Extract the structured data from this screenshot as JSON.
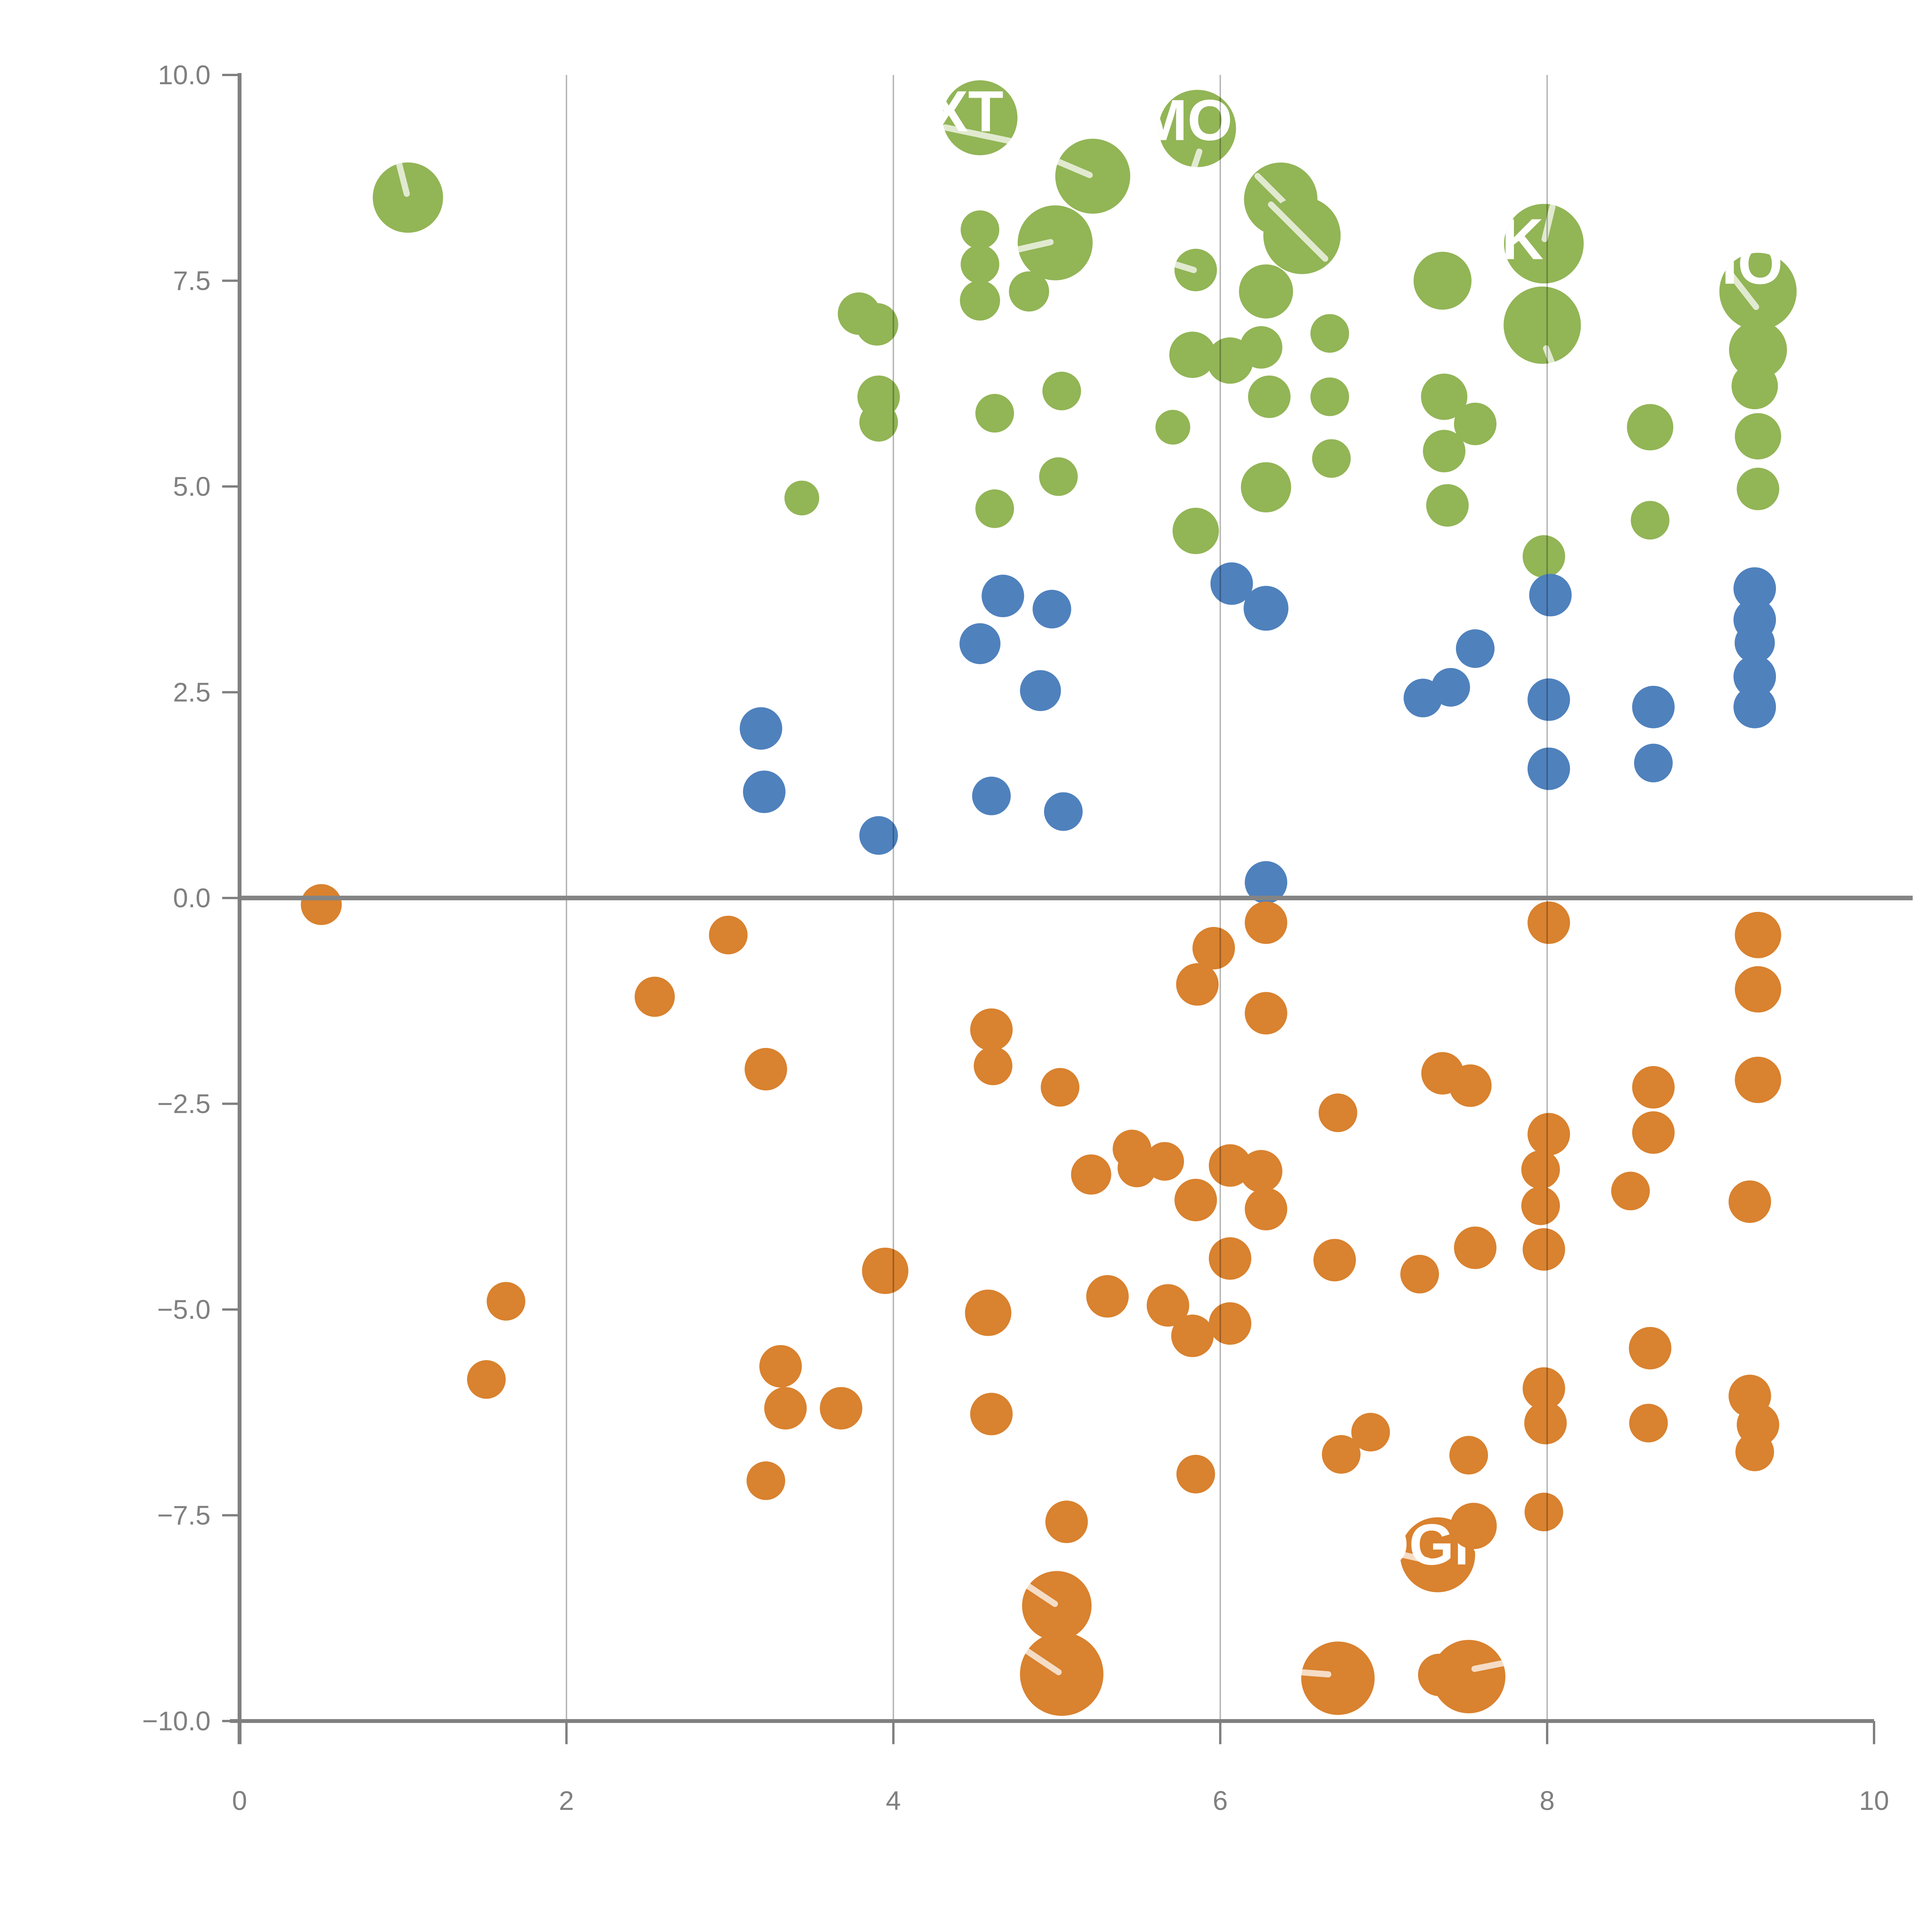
{
  "chart_data": {
    "type": "scatter",
    "title": "",
    "xlabel": "",
    "ylabel": "",
    "xlim": [
      0,
      10
    ],
    "ylim": [
      -10,
      10
    ],
    "x_ticks": [
      "0",
      "2",
      "4",
      "6",
      "8",
      "10"
    ],
    "x_tick_values": [
      0,
      2,
      4,
      6,
      8,
      10
    ],
    "y_ticks": [
      "10.0",
      "7.5",
      "5.0",
      "2.5",
      "0.0",
      "−2.5",
      "−5.0",
      "−7.5",
      "−10.0"
    ],
    "y_tick_values": [
      10,
      7.5,
      5,
      2.5,
      0,
      -2.5,
      -5,
      -7.5,
      -10
    ],
    "grid_x": [
      2,
      4,
      6,
      8
    ],
    "zero_line_y": 0,
    "legend_position": "none",
    "colors": {
      "green": "#92B556",
      "blue": "#4F81BD",
      "orange": "#D9822F",
      "axis": "#808080",
      "zero_line": "#848484",
      "bubble_label": "#ffffff"
    },
    "series": [
      {
        "name": "green",
        "color": "#92B556",
        "points": [
          [
            1.03,
            8.51,
            91,
            {
              "line": [
                -24,
                -92,
                -3,
                -10
              ]
            }
          ],
          [
            4.53,
            9.48,
            97,
            {
              "label": "XT",
              "dx": -35,
              "dy": 35,
              "line": [
                -90,
                25,
                77,
                60
              ]
            }
          ],
          [
            5.86,
            9.35,
            100,
            {
              "label": "MO",
              "dx": -30,
              "dy": 30,
              "line": [
                5,
                60,
                -25,
                150
              ]
            }
          ],
          [
            5.22,
            8.77,
            97,
            {
              "line": [
                -95,
                -40,
                -8,
                -3
              ]
            }
          ],
          [
            4.99,
            7.96,
            97,
            {
              "line": [
                -100,
                18,
                -12,
                -2
              ]
            }
          ],
          [
            4.53,
            8.12,
            50
          ],
          [
            4.53,
            7.7,
            50
          ],
          [
            4.53,
            7.26,
            52
          ],
          [
            4.83,
            7.37,
            52
          ],
          [
            6.37,
            8.49,
            95,
            {
              "line": [
                -60,
                -60,
                25,
                25
              ]
            }
          ],
          [
            6.5,
            8.05,
            100,
            {
              "line": [
                -80,
                -80,
                60,
                60
              ]
            }
          ],
          [
            3.79,
            7.1,
            55
          ],
          [
            3.9,
            6.97,
            55
          ],
          [
            3.91,
            6.09,
            55
          ],
          [
            3.91,
            5.78,
            50
          ],
          [
            4.62,
            5.89,
            50
          ],
          [
            5.03,
            6.16,
            50
          ],
          [
            5.01,
            5.12,
            50
          ],
          [
            3.44,
            4.86,
            45
          ],
          [
            4.62,
            4.73,
            50
          ],
          [
            5.85,
            7.63,
            55,
            {
              "line": [
                -70,
                -20,
                -5,
                0
              ]
            }
          ],
          [
            6.28,
            7.37,
            70
          ],
          [
            7.36,
            7.5,
            75
          ],
          [
            7.98,
            7.95,
            103,
            {
              "label": "K",
              "dx": -55,
              "dy": 40,
              "line": [
                22,
                -95,
                2,
                -12
              ]
            }
          ],
          [
            7.97,
            6.96,
            100,
            {
              "line": [
                10,
                60,
                50,
                160
              ]
            }
          ],
          [
            9.29,
            7.37,
            100,
            {
              "label": "IO",
              "dx": -15,
              "dy": -20,
              "line": [
                -75,
                -50,
                -5,
                40
              ]
            }
          ],
          [
            9.29,
            6.66,
            75
          ],
          [
            9.27,
            6.22,
            60
          ],
          [
            5.83,
            6.6,
            60
          ],
          [
            6.06,
            6.53,
            60
          ],
          [
            6.25,
            6.69,
            55
          ],
          [
            6.3,
            6.09,
            55
          ],
          [
            6.67,
            6.86,
            50
          ],
          [
            6.67,
            6.09,
            50
          ],
          [
            7.37,
            6.09,
            60
          ],
          [
            7.56,
            5.76,
            55
          ],
          [
            7.37,
            5.43,
            55
          ],
          [
            7.39,
            4.77,
            55
          ],
          [
            5.71,
            5.72,
            45
          ],
          [
            6.28,
            4.99,
            65
          ],
          [
            6.68,
            5.34,
            50
          ],
          [
            8.63,
            5.72,
            60
          ],
          [
            9.29,
            5.61,
            60
          ],
          [
            9.29,
            4.97,
            55
          ],
          [
            8.63,
            4.59,
            50
          ],
          [
            5.85,
            4.46,
            60
          ],
          [
            7.98,
            4.15,
            55
          ]
        ]
      },
      {
        "name": "blue",
        "color": "#4F81BD",
        "points": [
          [
            4.67,
            3.67,
            55
          ],
          [
            4.97,
            3.51,
            50
          ],
          [
            4.53,
            3.09,
            53
          ],
          [
            3.19,
            2.06,
            55
          ],
          [
            3.21,
            1.29,
            55
          ],
          [
            3.91,
            0.76,
            50
          ],
          [
            4.6,
            1.24,
            50
          ],
          [
            4.9,
            2.52,
            53
          ],
          [
            5.04,
            1.05,
            50
          ],
          [
            6.07,
            3.82,
            55
          ],
          [
            6.28,
            3.52,
            58
          ],
          [
            8.02,
            3.68,
            55
          ],
          [
            9.27,
            3.76,
            55
          ],
          [
            9.27,
            3.38,
            55
          ],
          [
            9.27,
            3.1,
            52
          ],
          [
            7.56,
            3.03,
            50
          ],
          [
            7.24,
            2.43,
            50
          ],
          [
            7.41,
            2.56,
            50
          ],
          [
            8.01,
            2.41,
            55
          ],
          [
            8.65,
            2.32,
            55
          ],
          [
            8.01,
            1.57,
            55
          ],
          [
            8.65,
            1.64,
            50
          ],
          [
            9.27,
            2.69,
            55
          ],
          [
            9.27,
            2.32,
            55
          ],
          [
            6.28,
            0.19,
            55
          ]
        ]
      },
      {
        "name": "orange",
        "color": "#D9822F",
        "points": [
          [
            0.5,
            -0.08,
            53
          ],
          [
            2.99,
            -0.45,
            50
          ],
          [
            2.54,
            -1.2,
            52
          ],
          [
            3.22,
            -2.08,
            55
          ],
          [
            4.6,
            -1.6,
            55
          ],
          [
            4.61,
            -2.04,
            50
          ],
          [
            5.02,
            -2.3,
            50
          ],
          [
            6.28,
            -0.3,
            55
          ],
          [
            5.96,
            -0.61,
            55
          ],
          [
            5.86,
            -1.05,
            55
          ],
          [
            6.28,
            -1.4,
            55
          ],
          [
            8.01,
            -0.3,
            55
          ],
          [
            9.29,
            -0.45,
            60
          ],
          [
            9.29,
            -1.11,
            60
          ],
          [
            7.36,
            -2.13,
            55
          ],
          [
            7.53,
            -2.28,
            55
          ],
          [
            6.72,
            -2.61,
            50
          ],
          [
            8.65,
            -2.3,
            55
          ],
          [
            8.65,
            -2.85,
            55
          ],
          [
            8.01,
            -2.87,
            55
          ],
          [
            9.29,
            -2.21,
            60
          ],
          [
            5.46,
            -3.05,
            50
          ],
          [
            5.21,
            -3.36,
            52
          ],
          [
            5.49,
            -3.28,
            50
          ],
          [
            5.66,
            -3.2,
            50
          ],
          [
            5.85,
            -3.67,
            55
          ],
          [
            6.06,
            -3.25,
            55
          ],
          [
            6.25,
            -3.32,
            55
          ],
          [
            6.28,
            -3.78,
            55
          ],
          [
            6.06,
            -4.38,
            55
          ],
          [
            6.7,
            -4.4,
            55
          ],
          [
            7.22,
            -4.57,
            50
          ],
          [
            7.56,
            -4.25,
            55
          ],
          [
            7.96,
            -3.74,
            50
          ],
          [
            7.96,
            -3.3,
            50
          ],
          [
            7.98,
            -4.27,
            55
          ],
          [
            8.51,
            -3.56,
            50
          ],
          [
            9.24,
            -3.69,
            55
          ],
          [
            1.63,
            -4.9,
            50
          ],
          [
            1.51,
            -5.85,
            50
          ],
          [
            3.95,
            -4.53,
            60
          ],
          [
            4.58,
            -5.04,
            60
          ],
          [
            5.31,
            -4.84,
            55
          ],
          [
            5.68,
            -4.95,
            55
          ],
          [
            5.83,
            -5.32,
            55
          ],
          [
            6.06,
            -5.17,
            55
          ],
          [
            8.63,
            -5.47,
            55
          ],
          [
            3.31,
            -5.69,
            55
          ],
          [
            3.34,
            -6.2,
            55
          ],
          [
            3.68,
            -6.2,
            55
          ],
          [
            3.22,
            -7.08,
            50
          ],
          [
            4.6,
            -6.27,
            55
          ],
          [
            7.98,
            -5.96,
            55
          ],
          [
            7.99,
            -6.38,
            55
          ],
          [
            8.62,
            -6.38,
            50
          ],
          [
            9.24,
            -6.05,
            55
          ],
          [
            9.29,
            -6.4,
            55
          ],
          [
            9.27,
            -6.73,
            50
          ],
          [
            5.85,
            -7.0,
            50
          ],
          [
            6.92,
            -6.49,
            50
          ],
          [
            6.74,
            -6.76,
            50
          ],
          [
            7.52,
            -6.77,
            50
          ],
          [
            5.06,
            -7.58,
            55
          ],
          [
            7.33,
            -7.98,
            97,
            {
              "label": "OGN",
              "dx": -20,
              "dy": 25,
              "line": [
                -90,
                0,
                -25,
                15
              ]
            }
          ],
          [
            7.55,
            -7.63,
            60
          ],
          [
            7.98,
            -7.46,
            50
          ],
          [
            5.0,
            -8.6,
            90,
            {
              "line": [
                -80,
                -55,
                -5,
                -5
              ]
            }
          ],
          [
            5.03,
            -9.43,
            108,
            {
              "line": [
                -90,
                -60,
                -8,
                -5
              ]
            }
          ],
          [
            6.72,
            -9.48,
            95,
            {
              "line": [
                -90,
                -15,
                -25,
                -10
              ]
            }
          ],
          [
            7.52,
            -9.46,
            95,
            {
              "line": [
                15,
                -20,
                90,
                -35
              ]
            }
          ],
          [
            7.34,
            -9.44,
            55
          ]
        ]
      }
    ]
  }
}
